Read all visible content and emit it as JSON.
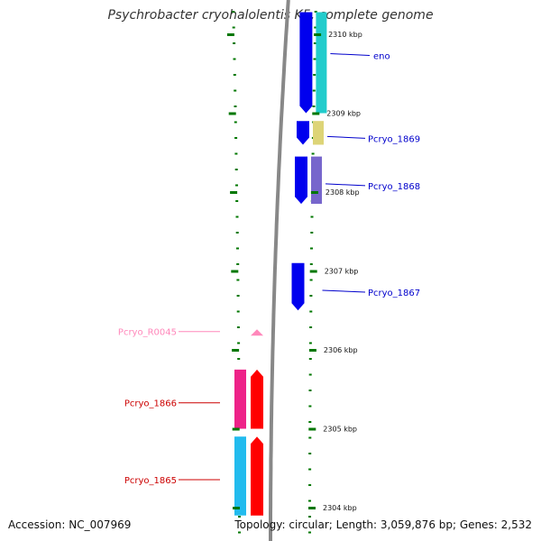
{
  "title": "Psychrobacter cryohalolentis K5, complete genome",
  "footer": {
    "accession": "Accession: NC_007969",
    "summary": "Topology: circular; Length: 3,059,876 bp; Genes: 2,532"
  },
  "colors": {
    "backbone": "#888888",
    "ticks": "#007700",
    "forward_strand_label": "#0000cc",
    "reverse_strand_label": "#cc0000",
    "rna_label": "#ff88bb"
  },
  "ruler": {
    "ticks": [
      {
        "label": "2310 kbp",
        "kbp": 2310
      },
      {
        "label": "2309 kbp",
        "kbp": 2309
      },
      {
        "label": "2308 kbp",
        "kbp": 2308
      },
      {
        "label": "2307 kbp",
        "kbp": 2307
      },
      {
        "label": "2306 kbp",
        "kbp": 2306
      },
      {
        "label": "2305 kbp",
        "kbp": 2305
      },
      {
        "label": "2304 kbp",
        "kbp": 2304
      }
    ]
  },
  "features": [
    {
      "name": "eno",
      "strand": "forward",
      "start_kbp": 2309.0,
      "end_kbp": 2310.28,
      "color": "#0000ee",
      "track_color": "#22cccc"
    },
    {
      "name": "Pcryo_1869",
      "strand": "forward",
      "start_kbp": 2308.6,
      "end_kbp": 2308.9,
      "color": "#0000ee",
      "track_color": "#ddd477"
    },
    {
      "name": "Pcryo_1868",
      "strand": "forward",
      "start_kbp": 2307.85,
      "end_kbp": 2308.45,
      "color": "#0000ee",
      "track_color": "#7766cc"
    },
    {
      "name": "Pcryo_1867",
      "strand": "forward",
      "start_kbp": 2306.5,
      "end_kbp": 2307.1,
      "color": "#0000ee"
    },
    {
      "name": "Pcryo_R0045",
      "strand": "reverse",
      "start_kbp": 2306.18,
      "end_kbp": 2306.26,
      "color": "#ff88bb"
    },
    {
      "name": "Pcryo_1866",
      "strand": "reverse",
      "start_kbp": 2305.0,
      "end_kbp": 2305.75,
      "color": "#ff0000",
      "track_color": "#ee2288"
    },
    {
      "name": "Pcryo_1865",
      "strand": "reverse",
      "start_kbp": 2303.9,
      "end_kbp": 2304.9,
      "color": "#ff0000",
      "track_color": "#22bbee"
    }
  ]
}
